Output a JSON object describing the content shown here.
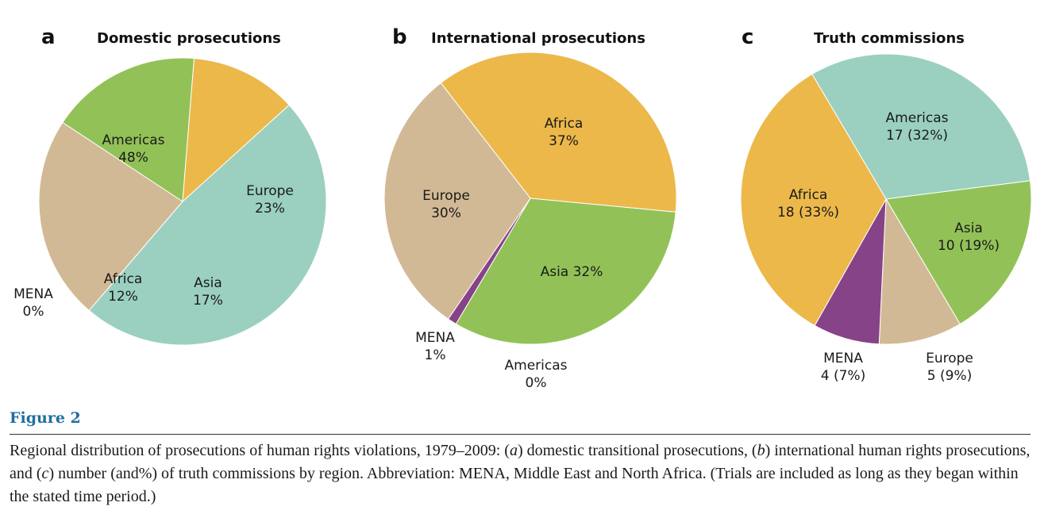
{
  "figure": {
    "label": "Figure 2",
    "caption_parts": [
      "Regional distribution of prosecutions of human rights violations, 1979–2009: (",
      "a",
      ") domestic transitional prosecutions, (",
      "b",
      ") international human rights prosecutions, and (",
      "c",
      ") number (and%) of truth commissions by region. Abbreviation: MENA, Middle East and North Africa. (Trials are included as long as they began within the stated time period.)"
    ]
  },
  "colors": {
    "Americas": "#9bd0c0",
    "Europe": "#d2b995",
    "Asia": "#92c257",
    "Africa": "#ecb84a",
    "MENA": "#874387",
    "mena_label": "#874387",
    "americas_label": "#5fa08e",
    "europe_label": "#9a7a50"
  },
  "chart_data": [
    {
      "type": "pie",
      "panel": "a",
      "title": "Domestic prosecutions",
      "slices": [
        {
          "name": "Americas",
          "value": 48,
          "label_lines": [
            "Americas",
            "48%"
          ]
        },
        {
          "name": "Europe",
          "value": 23,
          "label_lines": [
            "Europe",
            "23%"
          ]
        },
        {
          "name": "Asia",
          "value": 17,
          "label_lines": [
            "Asia",
            "17%"
          ]
        },
        {
          "name": "Africa",
          "value": 12,
          "label_lines": [
            "Africa",
            "12%"
          ]
        },
        {
          "name": "MENA",
          "value": 0,
          "label_lines": [
            "MENA",
            "0%"
          ]
        }
      ]
    },
    {
      "type": "pie",
      "panel": "b",
      "title": "International prosecutions",
      "slices": [
        {
          "name": "Africa",
          "value": 37,
          "label_lines": [
            "Africa",
            "37%"
          ]
        },
        {
          "name": "Americas",
          "value": 0,
          "label_lines": [
            "Americas",
            "0%"
          ]
        },
        {
          "name": "Asia",
          "value": 32,
          "label_lines": [
            "Asia 32%"
          ]
        },
        {
          "name": "MENA",
          "value": 1,
          "label_lines": [
            "MENA",
            "1%"
          ]
        },
        {
          "name": "Europe",
          "value": 30,
          "label_lines": [
            "Europe",
            "30%"
          ]
        }
      ]
    },
    {
      "type": "pie",
      "panel": "c",
      "title": "Truth commissions",
      "slices": [
        {
          "name": "Americas",
          "value": 17,
          "percent": 32,
          "label_lines": [
            "Americas",
            "17 (32%)"
          ]
        },
        {
          "name": "Asia",
          "value": 10,
          "percent": 19,
          "label_lines": [
            "Asia",
            "10 (19%)"
          ]
        },
        {
          "name": "Europe",
          "value": 5,
          "percent": 9,
          "label_lines": [
            "Europe",
            "5 (9%)"
          ]
        },
        {
          "name": "MENA",
          "value": 4,
          "percent": 7,
          "label_lines": [
            "MENA",
            "4 (7%)"
          ]
        },
        {
          "name": "Africa",
          "value": 18,
          "percent": 33,
          "label_lines": [
            "Africa",
            "18 (33%)"
          ]
        }
      ]
    }
  ]
}
